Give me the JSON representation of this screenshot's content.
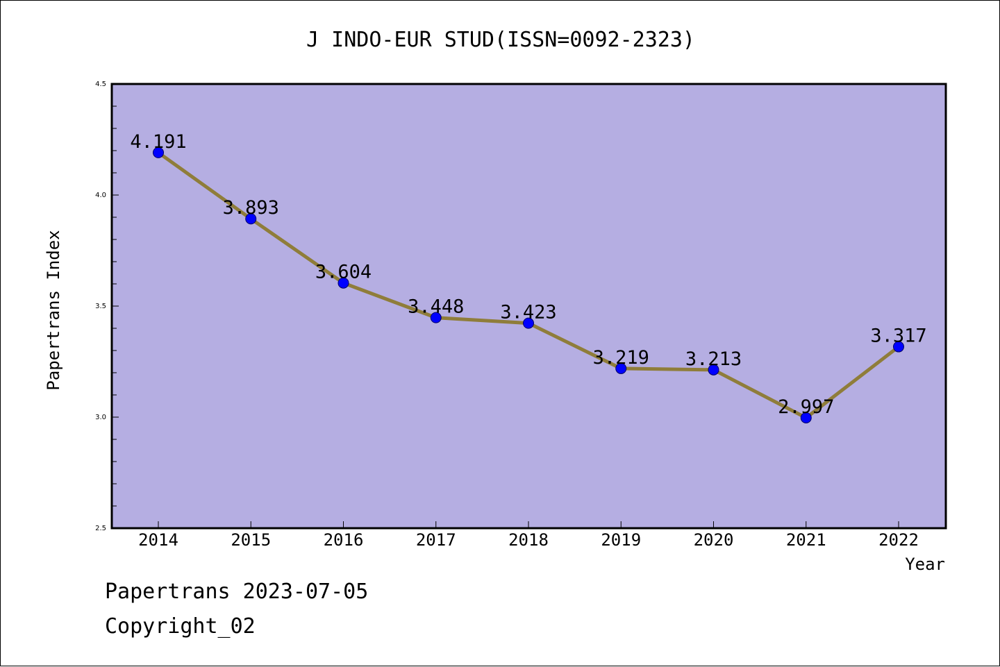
{
  "footer": {
    "line1": "Papertrans 2023-07-05",
    "line2": "Copyright_02"
  },
  "colors": {
    "plot_background": "#b5aee2",
    "line": "#8f7d3a",
    "marker": "#0000ff",
    "marker_edge": "#000066",
    "frame": "#000000"
  },
  "chart_data": {
    "type": "line",
    "title": "J INDO-EUR STUD(ISSN=0092-2323)",
    "xlabel": "Year",
    "ylabel": "Papertrans Index",
    "x": [
      "2014",
      "2015",
      "2016",
      "2017",
      "2018",
      "2019",
      "2020",
      "2021",
      "2022"
    ],
    "series": [
      {
        "values": [
          4.191,
          3.893,
          3.604,
          3.448,
          3.423,
          3.219,
          3.213,
          2.997,
          3.317
        ],
        "labels": [
          "4.191",
          "3.893",
          "3.604",
          "3.448",
          "3.423",
          "3.219",
          "3.213",
          "2.997",
          "3.317"
        ]
      }
    ],
    "ylim": [
      2.5,
      4.5
    ],
    "yticks": [
      "2.5",
      "3.0",
      "3.5",
      "4.0",
      "4.5"
    ],
    "grid": false,
    "legend": "none"
  }
}
